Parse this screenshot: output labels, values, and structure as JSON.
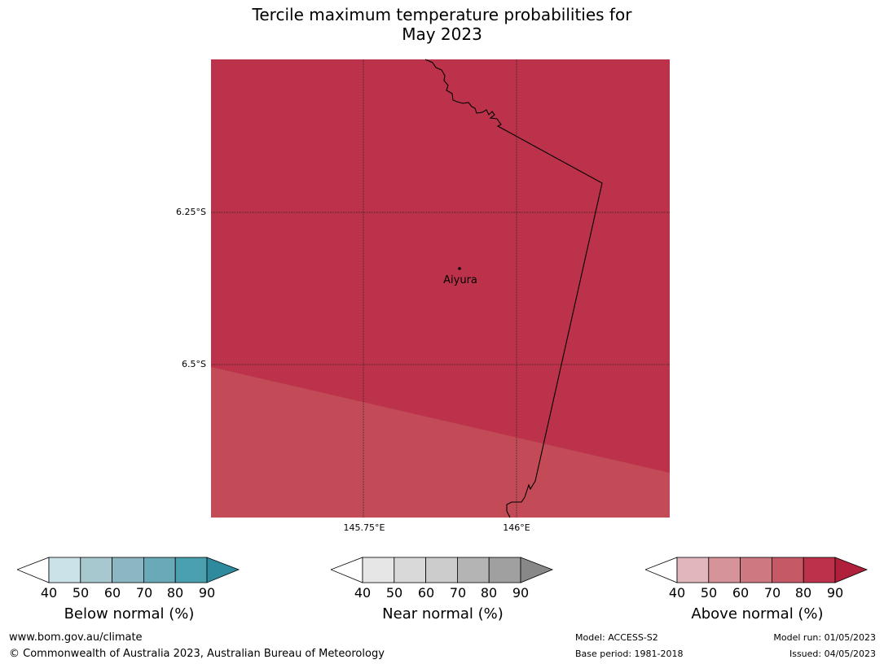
{
  "title": {
    "line1": "Tercile maximum temperature probabilities for",
    "line2": "May 2023"
  },
  "map": {
    "background_color": "#bb324a",
    "lower_zone_color": "#c24b57",
    "place": {
      "name": "Aiyura"
    },
    "lat_labels": [
      "6.25°S",
      "6.5°S"
    ],
    "lon_labels": [
      "145.75°E",
      "146°E"
    ]
  },
  "colorbars": [
    {
      "label": "Below normal (%)",
      "ticks": [
        "40",
        "50",
        "60",
        "70",
        "80",
        "90"
      ],
      "colors": [
        "#cbe3e8",
        "#a8c8cf",
        "#8bb6c2",
        "#6aaab8",
        "#4aa0ae"
      ],
      "over_color": "#2e8a9c"
    },
    {
      "label": "Near normal (%)",
      "ticks": [
        "40",
        "50",
        "60",
        "70",
        "80",
        "90"
      ],
      "colors": [
        "#e6e6e6",
        "#d9d9d9",
        "#cccccc",
        "#b4b4b4",
        "#a0a0a0"
      ],
      "over_color": "#888888"
    },
    {
      "label": "Above normal (%)",
      "ticks": [
        "40",
        "50",
        "60",
        "70",
        "80",
        "90"
      ],
      "colors": [
        "#e1b7bd",
        "#d7939a",
        "#ce7881",
        "#c55a66",
        "#bb324a"
      ],
      "over_color": "#b0203b"
    }
  ],
  "footer": {
    "website": "www.bom.gov.au/climate",
    "copyright": "© Commonwealth of Australia 2023, Australian Bureau of Meteorology",
    "model": "Model: ACCESS-S2",
    "base_period": "Base period: 1981-2018",
    "model_run": "Model run: 01/05/2023",
    "issued": "Issued: 04/05/2023"
  }
}
